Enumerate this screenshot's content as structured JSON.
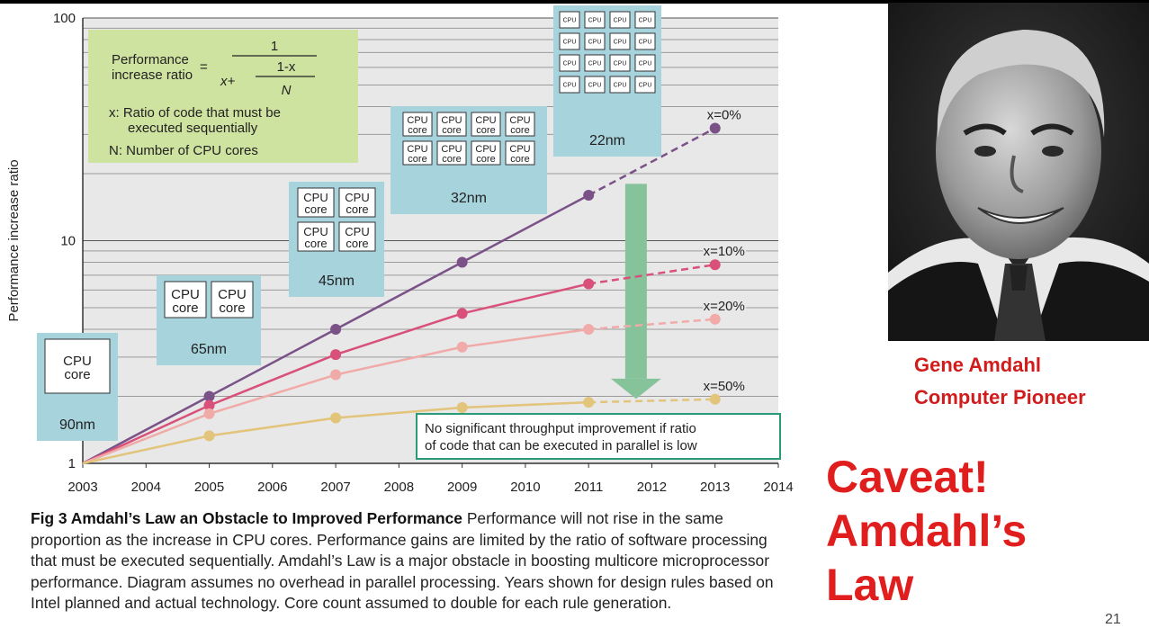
{
  "chart_data": {
    "type": "line",
    "ylabel": "Performance increase ratio",
    "xlabel": "",
    "yscale": "log",
    "ylim": [
      1,
      100
    ],
    "xlim": [
      2003,
      2014
    ],
    "y_ticks": [
      "1",
      "10",
      "100"
    ],
    "x_ticks": [
      "2003",
      "2004",
      "2005",
      "2006",
      "2007",
      "2008",
      "2009",
      "2010",
      "2011",
      "2012",
      "2013",
      "2014"
    ],
    "grid": true,
    "series": [
      {
        "name": "x=0%",
        "color": "#7a5288",
        "x": [
          2003,
          2005,
          2007,
          2009,
          2011,
          2013
        ],
        "values": [
          1,
          2,
          4,
          8,
          16,
          32
        ],
        "dashed_from": 2011
      },
      {
        "name": "x=10%",
        "color": "#d9517a",
        "x": [
          2003,
          2005,
          2007,
          2009,
          2011,
          2013
        ],
        "values": [
          1,
          1.82,
          3.08,
          4.71,
          6.4,
          7.8
        ],
        "dashed_from": 2011
      },
      {
        "name": "x=20%",
        "color": "#f0aaa8",
        "x": [
          2003,
          2005,
          2007,
          2009,
          2011,
          2013
        ],
        "values": [
          1,
          1.67,
          2.5,
          3.33,
          4.0,
          4.44
        ],
        "dashed_from": 2011
      },
      {
        "name": "x=50%",
        "color": "#e2c47a",
        "x": [
          2003,
          2005,
          2007,
          2009,
          2011,
          2013
        ],
        "values": [
          1,
          1.33,
          1.6,
          1.78,
          1.88,
          1.94
        ],
        "dashed_from": 2011
      }
    ],
    "formula": {
      "lhs": [
        "Performance",
        "increase ratio"
      ],
      "eq": "=",
      "numerator": "1",
      "x_plus": "x+",
      "inner_num": "1-x",
      "inner_den": "N",
      "def_x": [
        "x: Ratio of code that must be",
        "executed sequentially"
      ],
      "def_n": "N: Number of CPU cores"
    },
    "nodes": [
      {
        "label": "90nm",
        "cores": 1,
        "core_label": "CPU core"
      },
      {
        "label": "65nm",
        "cores": 2,
        "core_label": "CPU core"
      },
      {
        "label": "45nm",
        "cores": 4,
        "core_label": "CPU core"
      },
      {
        "label": "32nm",
        "cores": 8,
        "core_label": "CPU core"
      },
      {
        "label": "22nm",
        "cores": 16,
        "core_label": "CPU"
      }
    ],
    "annotation": [
      "No significant throughput improvement if ratio",
      "of code that can be executed in parallel is low"
    ]
  },
  "caption": {
    "title": "Fig 3  Amdahl’s Law an Obstacle to Improved Performance",
    "body": "  Performance will not rise in the same proportion as the increase in CPU cores. Performance gains are limited by the ratio of software processing that must be executed sequentially. Amdahl’s Law is a major obstacle in boosting multicore microprocessor performance. Diagram assumes no overhead in parallel processing. Years shown for design rules based on Intel planned and actual technology. Core count assumed to double for each rule generation."
  },
  "person": {
    "name": "Gene Amdahl",
    "title": "Computer Pioneer"
  },
  "headline": [
    "Caveat!",
    "Amdahl’s",
    "Law"
  ],
  "slide_number": "21",
  "colors": {
    "accent_red": "#e01e1e",
    "box_teal": "#a7d3dd",
    "box_green": "#cfe3a0",
    "arrow_green": "#86c39b"
  }
}
